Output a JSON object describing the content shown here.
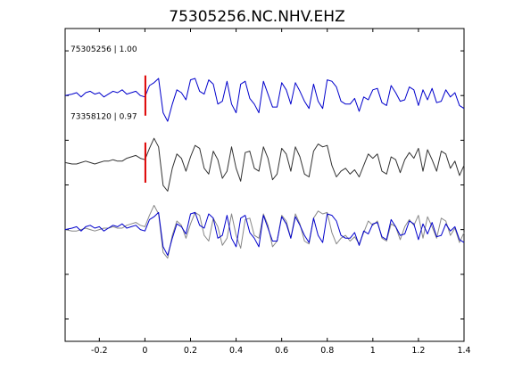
{
  "chart_data": {
    "type": "line",
    "title": "75305256.NC.NHV.EHZ",
    "xlabel": "",
    "ylabel": "",
    "xlim": [
      -0.35,
      1.4
    ],
    "ylim": [
      0,
      7
    ],
    "x_ticks": [
      -0.2,
      0,
      0.2,
      0.4,
      0.6,
      0.8,
      1,
      1.2,
      1.4
    ],
    "x_tick_labels": [
      "-0.2",
      "0",
      "0.2",
      "0.4",
      "0.6",
      "0.8",
      "1",
      "1.2",
      "1.4"
    ],
    "y_ticks": [
      0.5,
      1.5,
      2.5,
      3.5,
      4.5,
      5.5,
      6.5
    ],
    "grid": false,
    "pick_time": 0,
    "pick_color": "#dd0000",
    "series": [
      {
        "label": "75305256 | 1.00",
        "color": "#0000cc",
        "baseline": 5.5,
        "x": [
          -0.35,
          -0.32,
          -0.3,
          -0.28,
          -0.26,
          -0.24,
          -0.22,
          -0.2,
          -0.18,
          -0.16,
          -0.14,
          -0.12,
          -0.1,
          -0.08,
          -0.06,
          -0.04,
          -0.02,
          0,
          0.02,
          0.04,
          0.06,
          0.08,
          0.1,
          0.12,
          0.14,
          0.16,
          0.18,
          0.2,
          0.22,
          0.24,
          0.26,
          0.28,
          0.3,
          0.32,
          0.34,
          0.36,
          0.38,
          0.4,
          0.42,
          0.44,
          0.46,
          0.48,
          0.5,
          0.52,
          0.54,
          0.56,
          0.58,
          0.6,
          0.62,
          0.64,
          0.66,
          0.68,
          0.7,
          0.72,
          0.74,
          0.76,
          0.78,
          0.8,
          0.82,
          0.84,
          0.86,
          0.88,
          0.9,
          0.92,
          0.94,
          0.96,
          0.98,
          1,
          1.02,
          1.04,
          1.06,
          1.08,
          1.1,
          1.12,
          1.14,
          1.16,
          1.18,
          1.2,
          1.22,
          1.24,
          1.26,
          1.28,
          1.3,
          1.32,
          1.34,
          1.36,
          1.38,
          1.4
        ],
        "y": [
          0,
          0.05,
          0.1,
          -0.05,
          0.1,
          0.15,
          0.05,
          0.1,
          -0.05,
          0.05,
          0.15,
          0.1,
          0.2,
          0.05,
          0.1,
          0.15,
          0,
          -0.05,
          0.35,
          0.45,
          0.6,
          -0.6,
          -0.9,
          -0.3,
          0.2,
          0.1,
          -0.15,
          0.55,
          0.6,
          0.15,
          0.05,
          0.55,
          0.4,
          -0.3,
          -0.2,
          0.5,
          -0.3,
          -0.6,
          0.4,
          0.5,
          -0.1,
          -0.3,
          -0.6,
          0.5,
          0.05,
          -0.4,
          -0.4,
          0.45,
          0.2,
          -0.3,
          0.45,
          0.15,
          -0.2,
          -0.45,
          0.4,
          -0.2,
          -0.45,
          0.55,
          0.5,
          0.3,
          -0.2,
          -0.3,
          -0.3,
          -0.1,
          -0.55,
          -0.05,
          -0.15,
          0.2,
          0.25,
          -0.25,
          -0.35,
          0.35,
          0.1,
          -0.2,
          -0.15,
          0.3,
          0.2,
          -0.35,
          0.2,
          -0.15,
          0.25,
          -0.25,
          -0.2,
          0.2,
          -0.05,
          0.1,
          -0.35,
          -0.45
        ]
      },
      {
        "label": "73358120 | 0.97",
        "color": "#333333",
        "baseline": 4,
        "x": [
          -0.35,
          -0.32,
          -0.3,
          -0.28,
          -0.26,
          -0.24,
          -0.22,
          -0.2,
          -0.18,
          -0.16,
          -0.14,
          -0.12,
          -0.1,
          -0.08,
          -0.06,
          -0.04,
          -0.02,
          0,
          0.02,
          0.04,
          0.06,
          0.08,
          0.1,
          0.12,
          0.14,
          0.16,
          0.18,
          0.2,
          0.22,
          0.24,
          0.26,
          0.28,
          0.3,
          0.32,
          0.34,
          0.36,
          0.38,
          0.4,
          0.42,
          0.44,
          0.46,
          0.48,
          0.5,
          0.52,
          0.54,
          0.56,
          0.58,
          0.6,
          0.62,
          0.64,
          0.66,
          0.68,
          0.7,
          0.72,
          0.74,
          0.76,
          0.78,
          0.8,
          0.82,
          0.84,
          0.86,
          0.88,
          0.9,
          0.92,
          0.94,
          0.96,
          0.98,
          1,
          1.02,
          1.04,
          1.06,
          1.08,
          1.1,
          1.12,
          1.14,
          1.16,
          1.18,
          1.2,
          1.22,
          1.24,
          1.26,
          1.28,
          1.3,
          1.32,
          1.34,
          1.36,
          1.38,
          1.4
        ],
        "y": [
          0,
          -0.05,
          -0.05,
          0,
          0.05,
          0,
          -0.05,
          0,
          0.05,
          0.05,
          0.1,
          0.05,
          0.05,
          0.15,
          0.2,
          0.25,
          0.15,
          0.1,
          0.5,
          0.85,
          0.55,
          -0.8,
          -1,
          -0.2,
          0.3,
          0.15,
          -0.3,
          0.2,
          0.6,
          0.5,
          -0.2,
          -0.4,
          0.4,
          0.1,
          -0.55,
          -0.3,
          0.55,
          -0.2,
          -0.65,
          0.35,
          0.4,
          -0.2,
          -0.3,
          0.55,
          0.15,
          -0.6,
          -0.4,
          0.5,
          0.3,
          -0.3,
          0.55,
          0.2,
          -0.4,
          -0.5,
          0.4,
          0.65,
          0.55,
          0.6,
          -0.1,
          -0.5,
          -0.3,
          -0.2,
          -0.4,
          -0.25,
          -0.5,
          -0.1,
          0.3,
          0.15,
          0.3,
          -0.3,
          -0.4,
          0.2,
          0.1,
          -0.35,
          0.1,
          0.35,
          0.15,
          0.5,
          -0.3,
          0.45,
          0.1,
          -0.3,
          0.4,
          0.3,
          -0.2,
          0.05,
          -0.45,
          -0.1
        ]
      },
      {
        "label": "",
        "color": "#888888",
        "baseline": 2.5,
        "x": [
          -0.35,
          -0.32,
          -0.3,
          -0.28,
          -0.26,
          -0.24,
          -0.22,
          -0.2,
          -0.18,
          -0.16,
          -0.14,
          -0.12,
          -0.1,
          -0.08,
          -0.06,
          -0.04,
          -0.02,
          0,
          0.02,
          0.04,
          0.06,
          0.08,
          0.1,
          0.12,
          0.14,
          0.16,
          0.18,
          0.2,
          0.22,
          0.24,
          0.26,
          0.28,
          0.3,
          0.32,
          0.34,
          0.36,
          0.38,
          0.4,
          0.42,
          0.44,
          0.46,
          0.48,
          0.5,
          0.52,
          0.54,
          0.56,
          0.58,
          0.6,
          0.62,
          0.64,
          0.66,
          0.68,
          0.7,
          0.72,
          0.74,
          0.76,
          0.78,
          0.8,
          0.82,
          0.84,
          0.86,
          0.88,
          0.9,
          0.92,
          0.94,
          0.96,
          0.98,
          1,
          1.02,
          1.04,
          1.06,
          1.08,
          1.1,
          1.12,
          1.14,
          1.16,
          1.18,
          1.2,
          1.22,
          1.24,
          1.26,
          1.28,
          1.3,
          1.32,
          1.34,
          1.36,
          1.38,
          1.4
        ],
        "y": [
          0,
          -0.05,
          -0.05,
          0,
          0.05,
          0,
          -0.05,
          0,
          0.05,
          0.05,
          0.1,
          0.05,
          0.05,
          0.15,
          0.2,
          0.25,
          0.15,
          0.1,
          0.5,
          0.85,
          0.55,
          -0.8,
          -1,
          -0.2,
          0.3,
          0.15,
          -0.3,
          0.2,
          0.6,
          0.5,
          -0.2,
          -0.4,
          0.4,
          0.1,
          -0.55,
          -0.3,
          0.55,
          -0.2,
          -0.65,
          0.35,
          0.4,
          -0.2,
          -0.3,
          0.55,
          0.15,
          -0.6,
          -0.4,
          0.5,
          0.3,
          -0.3,
          0.55,
          0.2,
          -0.4,
          -0.5,
          0.4,
          0.65,
          0.55,
          0.6,
          -0.1,
          -0.5,
          -0.3,
          -0.2,
          -0.4,
          -0.25,
          -0.5,
          -0.1,
          0.3,
          0.15,
          0.3,
          -0.3,
          -0.4,
          0.2,
          0.1,
          -0.35,
          0.1,
          0.35,
          0.15,
          0.5,
          -0.3,
          0.45,
          0.1,
          -0.3,
          0.4,
          0.3,
          -0.2,
          0.05,
          -0.45,
          -0.1
        ]
      },
      {
        "label": "",
        "color": "#0000cc",
        "baseline": 2.5,
        "x": [
          -0.35,
          -0.32,
          -0.3,
          -0.28,
          -0.26,
          -0.24,
          -0.22,
          -0.2,
          -0.18,
          -0.16,
          -0.14,
          -0.12,
          -0.1,
          -0.08,
          -0.06,
          -0.04,
          -0.02,
          0,
          0.02,
          0.04,
          0.06,
          0.08,
          0.1,
          0.12,
          0.14,
          0.16,
          0.18,
          0.2,
          0.22,
          0.24,
          0.26,
          0.28,
          0.3,
          0.32,
          0.34,
          0.36,
          0.38,
          0.4,
          0.42,
          0.44,
          0.46,
          0.48,
          0.5,
          0.52,
          0.54,
          0.56,
          0.58,
          0.6,
          0.62,
          0.64,
          0.66,
          0.68,
          0.7,
          0.72,
          0.74,
          0.76,
          0.78,
          0.8,
          0.82,
          0.84,
          0.86,
          0.88,
          0.9,
          0.92,
          0.94,
          0.96,
          0.98,
          1,
          1.02,
          1.04,
          1.06,
          1.08,
          1.1,
          1.12,
          1.14,
          1.16,
          1.18,
          1.2,
          1.22,
          1.24,
          1.26,
          1.28,
          1.3,
          1.32,
          1.34,
          1.36,
          1.38,
          1.4
        ],
        "y": [
          0,
          0.05,
          0.1,
          -0.05,
          0.1,
          0.15,
          0.05,
          0.1,
          -0.05,
          0.05,
          0.15,
          0.1,
          0.2,
          0.05,
          0.1,
          0.15,
          0,
          -0.05,
          0.35,
          0.45,
          0.6,
          -0.6,
          -0.9,
          -0.3,
          0.2,
          0.1,
          -0.15,
          0.55,
          0.6,
          0.15,
          0.05,
          0.55,
          0.4,
          -0.3,
          -0.2,
          0.5,
          -0.3,
          -0.6,
          0.4,
          0.5,
          -0.1,
          -0.3,
          -0.6,
          0.5,
          0.05,
          -0.4,
          -0.4,
          0.45,
          0.2,
          -0.3,
          0.45,
          0.15,
          -0.2,
          -0.45,
          0.4,
          -0.2,
          -0.45,
          0.55,
          0.5,
          0.3,
          -0.2,
          -0.3,
          -0.3,
          -0.1,
          -0.55,
          -0.05,
          -0.15,
          0.2,
          0.25,
          -0.25,
          -0.35,
          0.35,
          0.1,
          -0.2,
          -0.15,
          0.3,
          0.2,
          -0.35,
          0.2,
          -0.15,
          0.25,
          -0.25,
          -0.2,
          0.2,
          -0.05,
          0.1,
          -0.35,
          -0.45
        ]
      }
    ]
  }
}
